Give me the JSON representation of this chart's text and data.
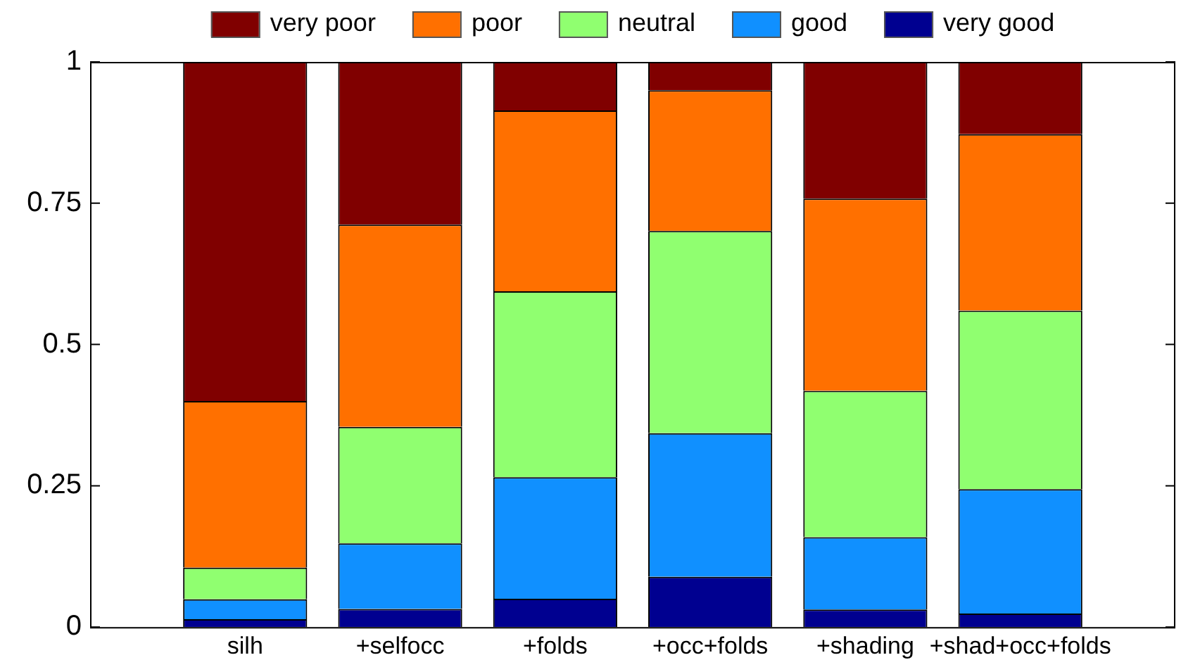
{
  "chart_data": {
    "type": "bar",
    "stacked": true,
    "categories": [
      null,
      "silh",
      "+selfocc",
      "+folds",
      "+occ+folds",
      "+shading",
      "+shad+occ+folds",
      null
    ],
    "series": [
      {
        "name": "very good",
        "color": "#000090",
        "values": [
          null,
          0.014,
          0.032,
          0.05,
          0.089,
          0.031,
          0.024,
          null
        ]
      },
      {
        "name": "good",
        "color": "#1090ff",
        "values": [
          null,
          0.035,
          0.116,
          0.215,
          0.254,
          0.128,
          0.22,
          null
        ]
      },
      {
        "name": "neutral",
        "color": "#90ff70",
        "values": [
          null,
          0.056,
          0.206,
          0.329,
          0.358,
          0.259,
          0.316,
          null
        ]
      },
      {
        "name": "poor",
        "color": "#ff7000",
        "values": [
          null,
          0.295,
          0.358,
          0.32,
          0.249,
          0.34,
          0.312,
          null
        ]
      },
      {
        "name": "very poor",
        "color": "#800000",
        "values": [
          null,
          0.6,
          0.288,
          0.086,
          0.05,
          0.242,
          0.128,
          null
        ]
      }
    ],
    "ylim": [
      0,
      1
    ],
    "yticks": [
      0,
      0.25,
      0.5,
      0.75,
      1
    ],
    "grid": false,
    "legend": "top"
  }
}
